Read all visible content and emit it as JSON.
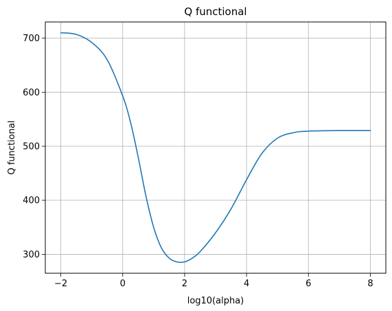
{
  "chart_data": {
    "type": "line",
    "title": "Q functional",
    "xlabel": "log10(alpha)",
    "ylabel": "Q functional",
    "xlim": [
      -2.5,
      8.5
    ],
    "ylim": [
      265,
      730
    ],
    "xticks": [
      -2,
      0,
      2,
      4,
      6,
      8
    ],
    "xtick_labels": [
      "−2",
      "0",
      "2",
      "4",
      "6",
      "8"
    ],
    "yticks": [
      300,
      400,
      500,
      600,
      700
    ],
    "ytick_labels": [
      "300",
      "400",
      "500",
      "600",
      "700"
    ],
    "grid": true,
    "series": [
      {
        "color": "#1f77b4",
        "x": [
          -2,
          -1.5,
          -1,
          -0.5,
          0,
          0.25,
          0.5,
          0.75,
          1,
          1.25,
          1.5,
          1.75,
          2,
          2.25,
          2.5,
          3,
          3.5,
          4,
          4.5,
          5,
          5.5,
          6,
          7,
          8
        ],
        "y": [
          710,
          707,
          692,
          660,
          593,
          545,
          480,
          408,
          350,
          312,
          293,
          286,
          286,
          293,
          305,
          340,
          384,
          438,
          487,
          515,
          525,
          528,
          529,
          529
        ]
      }
    ]
  }
}
